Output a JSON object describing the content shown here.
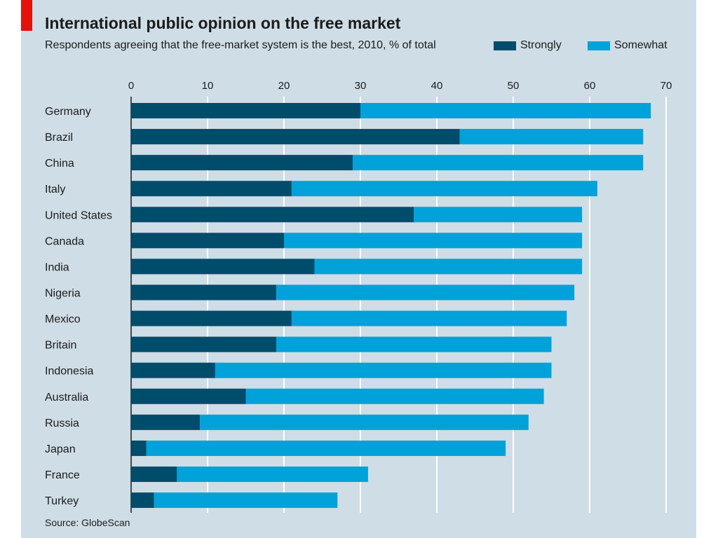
{
  "colors": {
    "background": "#cfdde6",
    "strongly": "#004c6b",
    "somewhat": "#00a2d9",
    "grid": "#ffffff",
    "accent": "#e3120b",
    "text": "#1b1b1b"
  },
  "chart_data": {
    "type": "bar",
    "orientation": "horizontal",
    "stacked": true,
    "title": "International public opinion on the free market",
    "subtitle": "Respondents agreeing that the free-market system is the best, 2010, % of total",
    "source": "Source: GlobeScan",
    "xlim": [
      0,
      70
    ],
    "xticks": [
      0,
      10,
      20,
      30,
      40,
      50,
      60,
      70
    ],
    "grid": true,
    "legend_placement": "top-right",
    "categories": [
      "Germany",
      "Brazil",
      "China",
      "Italy",
      "United States",
      "Canada",
      "India",
      "Nigeria",
      "Mexico",
      "Britain",
      "Indonesia",
      "Australia",
      "Russia",
      "Japan",
      "France",
      "Turkey"
    ],
    "series": [
      {
        "name": "Strongly",
        "values": [
          30,
          43,
          29,
          21,
          37,
          20,
          24,
          19,
          21,
          19,
          11,
          15,
          9,
          2,
          6,
          3
        ]
      },
      {
        "name": "Somewhat",
        "values": [
          38,
          24,
          38,
          40,
          22,
          39,
          35,
          39,
          36,
          36,
          44,
          39,
          43,
          47,
          25,
          24
        ]
      }
    ]
  }
}
